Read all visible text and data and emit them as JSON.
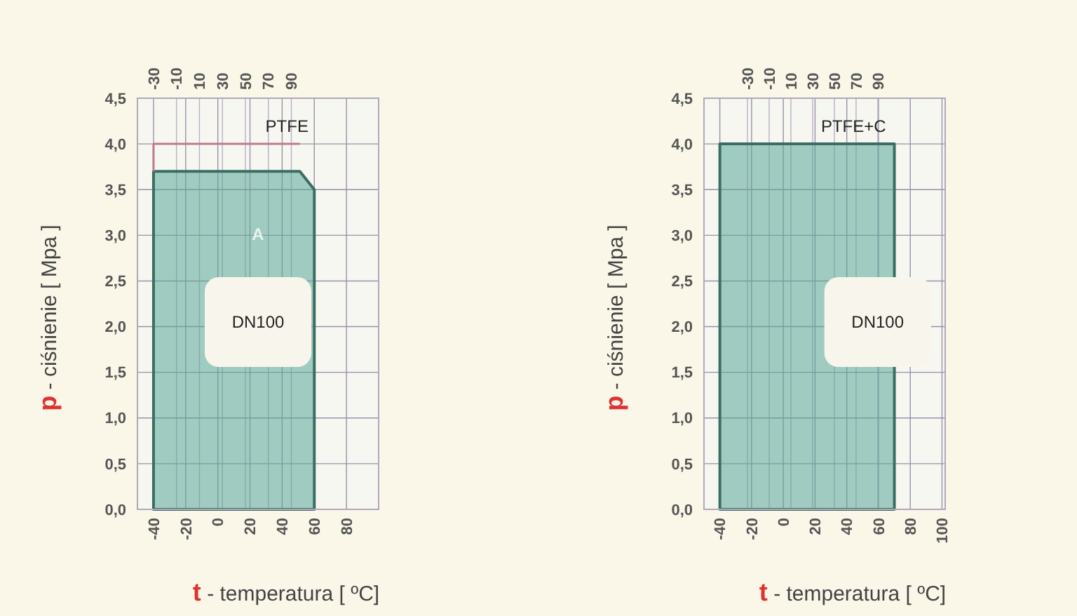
{
  "chart_data": [
    {
      "type": "area",
      "xlim": [
        -50,
        100
      ],
      "xticks": [
        -40,
        -20,
        0,
        20,
        40,
        60,
        80
      ],
      "x2lim": [
        -44,
        166
      ],
      "x2ticks": [
        -30,
        -10,
        10,
        30,
        50,
        70,
        90
      ],
      "ylim": [
        0,
        4.5
      ],
      "yticks": [
        {
          "value": 0,
          "label": "0,0"
        },
        {
          "value": 0.5,
          "label": "0,5"
        },
        {
          "value": 1,
          "label": "1,0"
        },
        {
          "value": 1.5,
          "label": "1,5"
        },
        {
          "value": 2,
          "label": "2,0"
        },
        {
          "value": 2.5,
          "label": "2,5"
        },
        {
          "value": 3,
          "label": "3,0"
        },
        {
          "value": 3.5,
          "label": "3,5"
        },
        {
          "value": 4,
          "label": "4,0"
        },
        {
          "value": 4.5,
          "label": "4,5"
        }
      ],
      "grid": true,
      "xlabel": "t - temperatura [ ºC]",
      "ylabel": "p - ciśnienie [ Mpa ]",
      "series": [
        {
          "color": "#5aa898",
          "x": [
            -40,
            -40,
            51,
            60,
            60
          ],
          "values": [
            0,
            3.7,
            3.7,
            3.5,
            0
          ]
        },
        {
          "type": "line",
          "color": "#c07890",
          "x": [
            -40,
            -40,
            51
          ],
          "values": [
            3.7,
            4.0,
            4.0
          ]
        }
      ],
      "annotations": [
        "PTFE",
        "A",
        "DN100"
      ]
    },
    {
      "type": "area",
      "xlim": [
        -50,
        102
      ],
      "xticks": [
        -40,
        -20,
        0,
        20,
        40,
        60,
        80,
        100
      ],
      "x2lim": [
        -70,
        152
      ],
      "x2ticks": [
        -30,
        -10,
        10,
        30,
        50,
        70,
        90
      ],
      "ylim": [
        0,
        4.5
      ],
      "yticks": [
        {
          "value": 0,
          "label": "0,0"
        },
        {
          "value": 0.5,
          "label": "0,5"
        },
        {
          "value": 1,
          "label": "1,0"
        },
        {
          "value": 1.5,
          "label": "1,5"
        },
        {
          "value": 2,
          "label": "2,0"
        },
        {
          "value": 2.5,
          "label": "2,5"
        },
        {
          "value": 3,
          "label": "3,0"
        },
        {
          "value": 3.5,
          "label": "3,5"
        },
        {
          "value": 4,
          "label": "4,0"
        },
        {
          "value": 4.5,
          "label": "4,5"
        }
      ],
      "grid": true,
      "xlabel": "t - temperatura [ ºC]",
      "ylabel": "p - ciśnienie [ Mpa ]",
      "series": [
        {
          "color": "#5aa898",
          "x": [
            -40,
            -40,
            70,
            70
          ],
          "values": [
            0,
            4.0,
            4.0,
            0
          ]
        }
      ],
      "annotations": [
        "PTFE+C",
        "DN100"
      ]
    }
  ]
}
